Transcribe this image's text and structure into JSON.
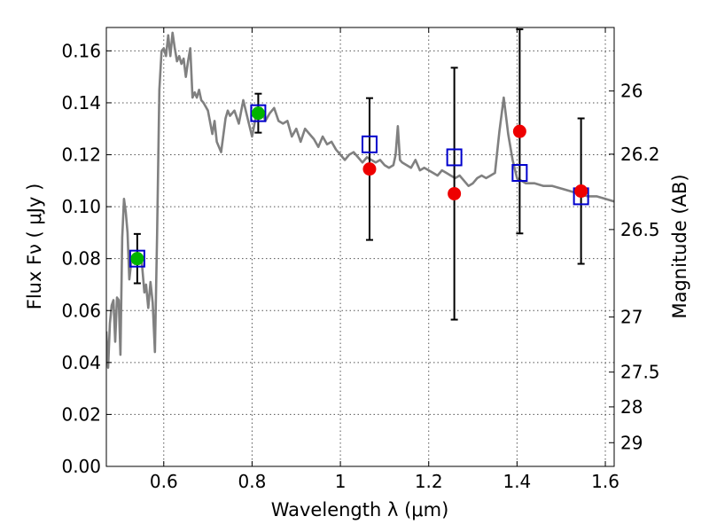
{
  "chart_data": {
    "type": "scatter",
    "title": "",
    "xlabel": "Wavelength  λ (μm)",
    "ylabel": "Flux  Fν  ( μJy )",
    "y2label": "Magnitude (AB)",
    "xlim": [
      0.47,
      1.62
    ],
    "ylim": [
      0.0,
      0.169
    ],
    "grid": true,
    "x_ticks": [
      0.6,
      0.8,
      1.0,
      1.2,
      1.4,
      1.6
    ],
    "x_tick_labels": [
      "0.6",
      "0.8",
      "1",
      "1.2",
      "1.4",
      "1.6"
    ],
    "y_ticks": [
      0.0,
      0.02,
      0.04,
      0.06,
      0.08,
      0.1,
      0.12,
      0.14,
      0.16
    ],
    "y_tick_labels": [
      "0.00",
      "0.02",
      "0.04",
      "0.06",
      "0.08",
      "0.10",
      "0.12",
      "0.14",
      "0.16"
    ],
    "y2_ticks": [
      {
        "label": "26",
        "value": 26.0
      },
      {
        "label": "26.2",
        "value": 26.2
      },
      {
        "label": "26.5",
        "value": 26.5
      },
      {
        "label": "27",
        "value": 27.0
      },
      {
        "label": "27.5",
        "value": 27.5
      },
      {
        "label": "28",
        "value": 28.0
      },
      {
        "label": "29",
        "value": 29.0
      }
    ],
    "colors": {
      "model": "#808080",
      "model_photometry": "#0000cc",
      "observed_detection": "#00b400",
      "observed_other": "#ee0000",
      "errorbar": "#000000",
      "grid": "#555555"
    },
    "series": [
      {
        "name": "model spectrum",
        "kind": "line",
        "x": [
          0.47,
          0.474,
          0.478,
          0.482,
          0.486,
          0.49,
          0.494,
          0.498,
          0.502,
          0.506,
          0.51,
          0.514,
          0.518,
          0.522,
          0.526,
          0.53,
          0.534,
          0.538,
          0.542,
          0.546,
          0.55,
          0.556,
          0.56,
          0.565,
          0.57,
          0.575,
          0.58,
          0.585,
          0.59,
          0.595,
          0.6,
          0.605,
          0.61,
          0.615,
          0.62,
          0.625,
          0.63,
          0.635,
          0.64,
          0.645,
          0.65,
          0.655,
          0.66,
          0.665,
          0.67,
          0.675,
          0.68,
          0.685,
          0.69,
          0.7,
          0.71,
          0.715,
          0.72,
          0.73,
          0.74,
          0.745,
          0.75,
          0.76,
          0.77,
          0.78,
          0.79,
          0.8,
          0.81,
          0.82,
          0.83,
          0.84,
          0.85,
          0.86,
          0.87,
          0.88,
          0.89,
          0.9,
          0.91,
          0.92,
          0.93,
          0.94,
          0.95,
          0.96,
          0.97,
          0.98,
          0.99,
          1.0,
          1.01,
          1.02,
          1.03,
          1.04,
          1.05,
          1.06,
          1.07,
          1.08,
          1.09,
          1.1,
          1.11,
          1.12,
          1.125,
          1.13,
          1.135,
          1.14,
          1.15,
          1.16,
          1.17,
          1.18,
          1.19,
          1.2,
          1.21,
          1.22,
          1.23,
          1.24,
          1.25,
          1.26,
          1.27,
          1.28,
          1.29,
          1.3,
          1.31,
          1.32,
          1.33,
          1.34,
          1.35,
          1.36,
          1.37,
          1.38,
          1.39,
          1.4,
          1.42,
          1.44,
          1.46,
          1.48,
          1.5,
          1.52,
          1.54,
          1.56,
          1.58,
          1.6,
          1.62
        ],
        "y": [
          0.052,
          0.038,
          0.055,
          0.062,
          0.064,
          0.048,
          0.065,
          0.064,
          0.043,
          0.088,
          0.103,
          0.098,
          0.09,
          0.072,
          0.078,
          0.081,
          0.078,
          0.079,
          0.08,
          0.081,
          0.079,
          0.067,
          0.07,
          0.061,
          0.071,
          0.063,
          0.044,
          0.09,
          0.145,
          0.16,
          0.161,
          0.158,
          0.166,
          0.158,
          0.167,
          0.161,
          0.156,
          0.158,
          0.155,
          0.157,
          0.15,
          0.156,
          0.161,
          0.142,
          0.144,
          0.142,
          0.145,
          0.141,
          0.14,
          0.137,
          0.128,
          0.133,
          0.125,
          0.121,
          0.134,
          0.137,
          0.135,
          0.137,
          0.132,
          0.141,
          0.134,
          0.127,
          0.136,
          0.138,
          0.133,
          0.136,
          0.138,
          0.133,
          0.132,
          0.133,
          0.127,
          0.13,
          0.125,
          0.13,
          0.128,
          0.126,
          0.123,
          0.127,
          0.124,
          0.125,
          0.122,
          0.12,
          0.118,
          0.12,
          0.121,
          0.119,
          0.117,
          0.119,
          0.118,
          0.117,
          0.118,
          0.116,
          0.115,
          0.116,
          0.12,
          0.131,
          0.118,
          0.117,
          0.116,
          0.115,
          0.118,
          0.114,
          0.115,
          0.114,
          0.113,
          0.112,
          0.114,
          0.113,
          0.112,
          0.111,
          0.112,
          0.11,
          0.108,
          0.109,
          0.111,
          0.112,
          0.111,
          0.112,
          0.113,
          0.129,
          0.142,
          0.128,
          0.118,
          0.111,
          0.109,
          0.109,
          0.108,
          0.108,
          0.107,
          0.106,
          0.105,
          0.104,
          0.104,
          0.103,
          0.102
        ]
      },
      {
        "name": "model photometry",
        "kind": "open-square",
        "x": [
          0.54,
          0.814,
          1.066,
          1.258,
          1.406,
          1.545
        ],
        "y": [
          0.08,
          0.136,
          0.124,
          0.119,
          0.113,
          0.104
        ]
      },
      {
        "name": "observed flux (detections)",
        "kind": "filled-circle",
        "color_key": "observed_detection",
        "x": [
          0.54,
          0.814
        ],
        "y": [
          0.08,
          0.136
        ],
        "yerr": [
          0.0095,
          0.0075
        ]
      },
      {
        "name": "observed flux",
        "kind": "filled-circle",
        "color_key": "observed_other",
        "x": [
          1.066,
          1.258,
          1.406,
          1.545
        ],
        "y": [
          0.1145,
          0.105,
          0.129,
          0.106
        ],
        "yerr": [
          0.0273,
          0.0485,
          0.0393,
          0.028
        ]
      }
    ]
  }
}
